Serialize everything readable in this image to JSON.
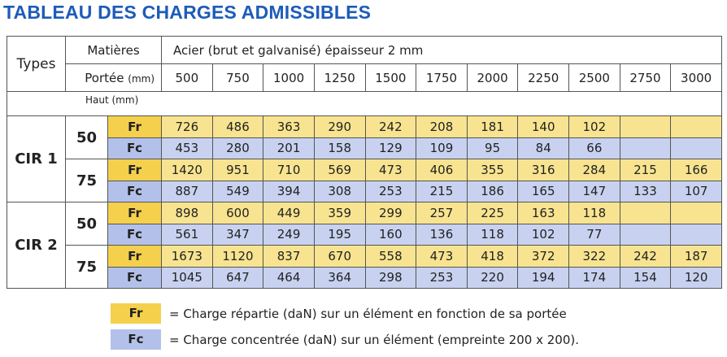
{
  "title": "TABLEAU DES CHARGES ADMISSIBLES",
  "table": {
    "types_label": "Types",
    "matieres_label": "Matières",
    "material": "Acier (brut et galvanisé) épaisseur 2 mm",
    "portee_label": "Portée",
    "portee_unit": "(mm)",
    "spans": [
      500,
      750,
      1000,
      1250,
      1500,
      1750,
      2000,
      2250,
      2500,
      2750,
      3000
    ],
    "haut_label": "Haut (mm)",
    "groups": [
      {
        "name": "CIR 1",
        "heights": [
          {
            "height": 50,
            "rows": [
              {
                "kind": "Fr",
                "values": [
                  726,
                  486,
                  363,
                  290,
                  242,
                  208,
                  181,
                  140,
                  102,
                  null,
                  null
                ]
              },
              {
                "kind": "Fc",
                "values": [
                  453,
                  280,
                  201,
                  158,
                  129,
                  109,
                  95,
                  84,
                  66,
                  null,
                  null
                ]
              }
            ]
          },
          {
            "height": 75,
            "rows": [
              {
                "kind": "Fr",
                "values": [
                  1420,
                  951,
                  710,
                  569,
                  473,
                  406,
                  355,
                  316,
                  284,
                  215,
                  166
                ]
              },
              {
                "kind": "Fc",
                "values": [
                  887,
                  549,
                  394,
                  308,
                  253,
                  215,
                  186,
                  165,
                  147,
                  133,
                  107
                ]
              }
            ]
          }
        ]
      },
      {
        "name": "CIR 2",
        "heights": [
          {
            "height": 50,
            "rows": [
              {
                "kind": "Fr",
                "values": [
                  898,
                  600,
                  449,
                  359,
                  299,
                  257,
                  225,
                  163,
                  118,
                  null,
                  null
                ]
              },
              {
                "kind": "Fc",
                "values": [
                  561,
                  347,
                  249,
                  195,
                  160,
                  136,
                  118,
                  102,
                  77,
                  null,
                  null
                ]
              }
            ]
          },
          {
            "height": 75,
            "rows": [
              {
                "kind": "Fr",
                "values": [
                  1673,
                  1120,
                  837,
                  670,
                  558,
                  473,
                  418,
                  372,
                  322,
                  242,
                  187
                ]
              },
              {
                "kind": "Fc",
                "values": [
                  1045,
                  647,
                  464,
                  364,
                  298,
                  253,
                  220,
                  194,
                  174,
                  154,
                  120
                ]
              }
            ]
          }
        ]
      }
    ]
  },
  "legend": [
    {
      "key": "Fr",
      "text": "= Charge répartie (daN) sur un élément en fonction de sa portée"
    },
    {
      "key": "Fc",
      "text": "= Charge concentrée (daN) sur un élément (empreinte 200 x 200)."
    }
  ]
}
